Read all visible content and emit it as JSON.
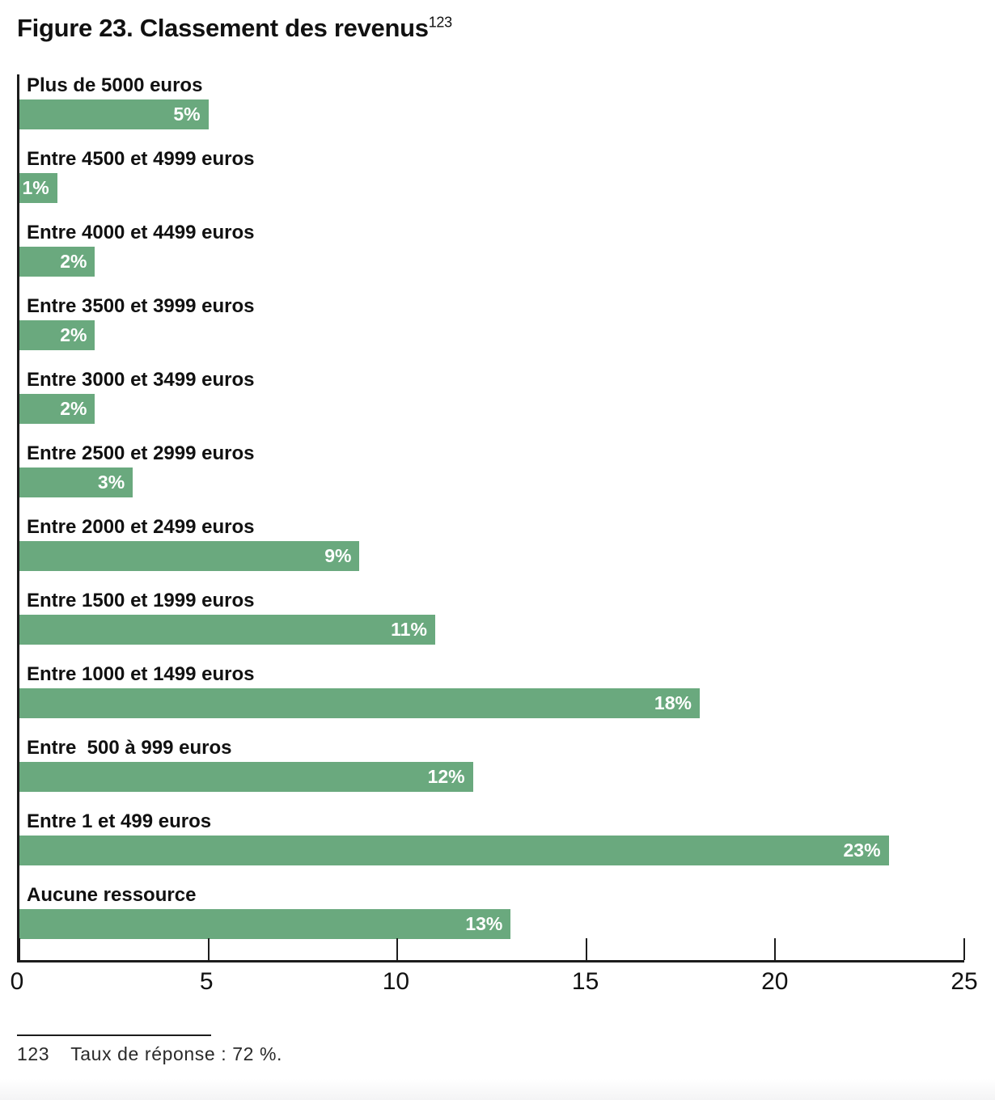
{
  "title": {
    "text": "Figure 23. Classement des revenus",
    "superscript": "123"
  },
  "chart_data": {
    "type": "bar",
    "orientation": "horizontal",
    "title": "Figure 23. Classement des revenus",
    "categories": [
      "Plus de 5000 euros",
      "Entre 4500 et 4999 euros",
      "Entre 4000 et 4499 euros",
      "Entre 3500 et 3999 euros",
      "Entre 3000 et 3499 euros",
      "Entre 2500 et 2999 euros",
      "Entre 2000 et 2499 euros",
      "Entre 1500 et 1999 euros",
      "Entre 1000 et 1499 euros",
      "Entre  500 à 999 euros",
      "Entre 1 et 499 euros",
      "Aucune ressource"
    ],
    "values": [
      5,
      1,
      2,
      2,
      2,
      3,
      9,
      11,
      18,
      12,
      23,
      13
    ],
    "value_labels": [
      "5%",
      "1%",
      "2%",
      "2%",
      "2%",
      "3%",
      "9%",
      "11%",
      "18%",
      "12%",
      "23%",
      "13%"
    ],
    "xlabel": "",
    "ylabel": "",
    "xlim": [
      0,
      25
    ],
    "x_ticks": [
      0,
      5,
      10,
      15,
      20,
      25
    ],
    "grid": false,
    "legend": "none",
    "bar_color": "#6aa97e",
    "value_label_color": "#ffffff",
    "axis_color": "#1c1c1c"
  },
  "footnote": {
    "marker": "123",
    "text": "Taux de réponse : 72 %."
  }
}
